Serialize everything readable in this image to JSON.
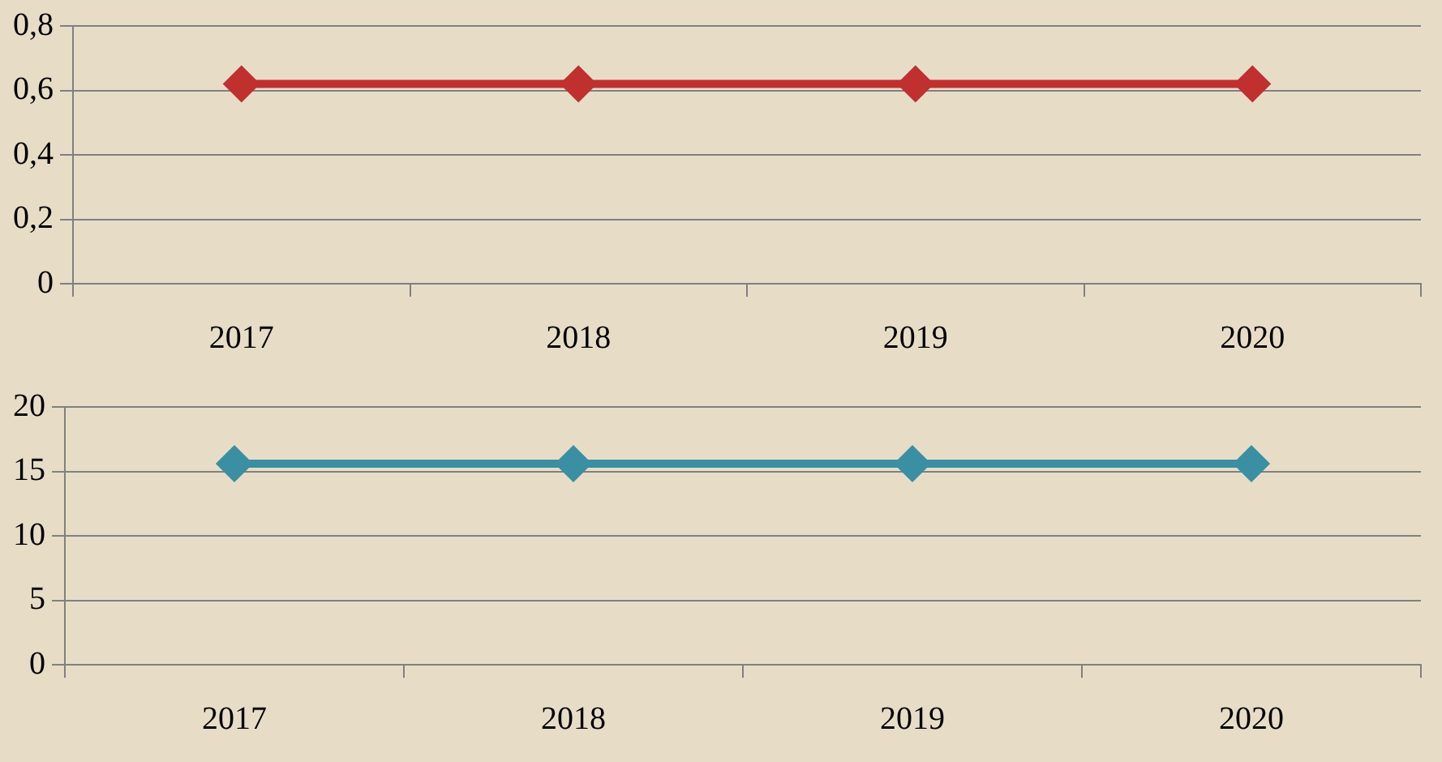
{
  "chart_data": [
    {
      "type": "line",
      "categories": [
        "2017",
        "2018",
        "2019",
        "2020"
      ],
      "series": [
        {
          "color": "#c0302f",
          "values": [
            0.62,
            0.62,
            0.62,
            0.62
          ]
        }
      ],
      "ylim": [
        0,
        0.8
      ],
      "yticks": [
        {
          "value": 0,
          "label": "0"
        },
        {
          "value": 0.2,
          "label": "0,2"
        },
        {
          "value": 0.4,
          "label": "0,4"
        },
        {
          "value": 0.6,
          "label": "0,6"
        },
        {
          "value": 0.8,
          "label": "0,8"
        }
      ],
      "grid": "y",
      "marker": "diamond",
      "line_style": "solid"
    },
    {
      "type": "line",
      "categories": [
        "2017",
        "2018",
        "2019",
        "2020"
      ],
      "series": [
        {
          "color": "#3a8fa3",
          "values": [
            15.6,
            15.6,
            15.6,
            15.6
          ]
        }
      ],
      "ylim": [
        0,
        20
      ],
      "yticks": [
        0,
        5,
        10,
        15,
        20
      ],
      "grid": "y",
      "marker": "diamond",
      "line_style": "solid"
    }
  ]
}
